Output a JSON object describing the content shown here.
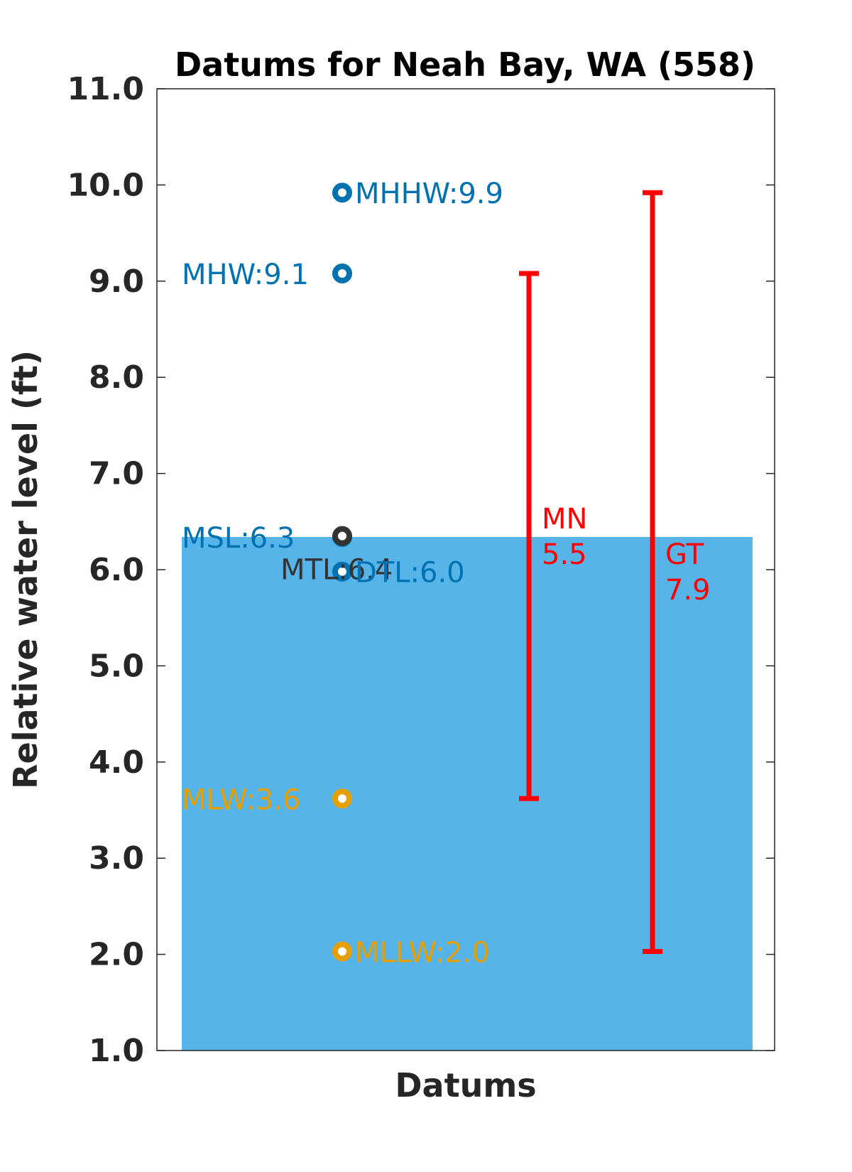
{
  "chart_data": {
    "type": "scatter",
    "title": "Datums for Neah Bay, WA (558)",
    "xlabel": "Datums",
    "ylabel": "Relative water level (ft)",
    "ylim": [
      1.0,
      11.0
    ],
    "yticks": [
      "1.0",
      "2.0",
      "3.0",
      "4.0",
      "5.0",
      "6.0",
      "7.0",
      "8.0",
      "9.0",
      "10.0",
      "11.0"
    ],
    "grid": false,
    "fill_level": 6.34,
    "colors": {
      "fill": "#56b4e9",
      "high": "#0072b2",
      "low": "#e69f00",
      "mean": "#333333",
      "range": "#ff0000"
    },
    "datums": [
      {
        "name": "MHHW",
        "value": 9.92,
        "label": "MHHW:9.9",
        "group": "high"
      },
      {
        "name": "MHW",
        "value": 9.08,
        "label": "MHW:9.1",
        "group": "high"
      },
      {
        "name": "MSL",
        "value": 6.34,
        "label": "MSL:6.3",
        "group": "high"
      },
      {
        "name": "MTL",
        "value": 6.35,
        "label": "MTL:6.4",
        "group": "mean"
      },
      {
        "name": "DTL",
        "value": 5.98,
        "label": "DTL:6.0",
        "group": "high"
      },
      {
        "name": "MLW",
        "value": 3.62,
        "label": "MLW:3.6",
        "group": "low"
      },
      {
        "name": "MLLW",
        "value": 2.03,
        "label": "MLLW:2.0",
        "group": "low"
      }
    ],
    "ranges": [
      {
        "name": "MN",
        "low": 3.62,
        "high": 9.08,
        "label_name": "MN",
        "label_value": "5.5"
      },
      {
        "name": "GT",
        "low": 2.03,
        "high": 9.92,
        "label_name": "GT",
        "label_value": "7.9"
      }
    ]
  }
}
